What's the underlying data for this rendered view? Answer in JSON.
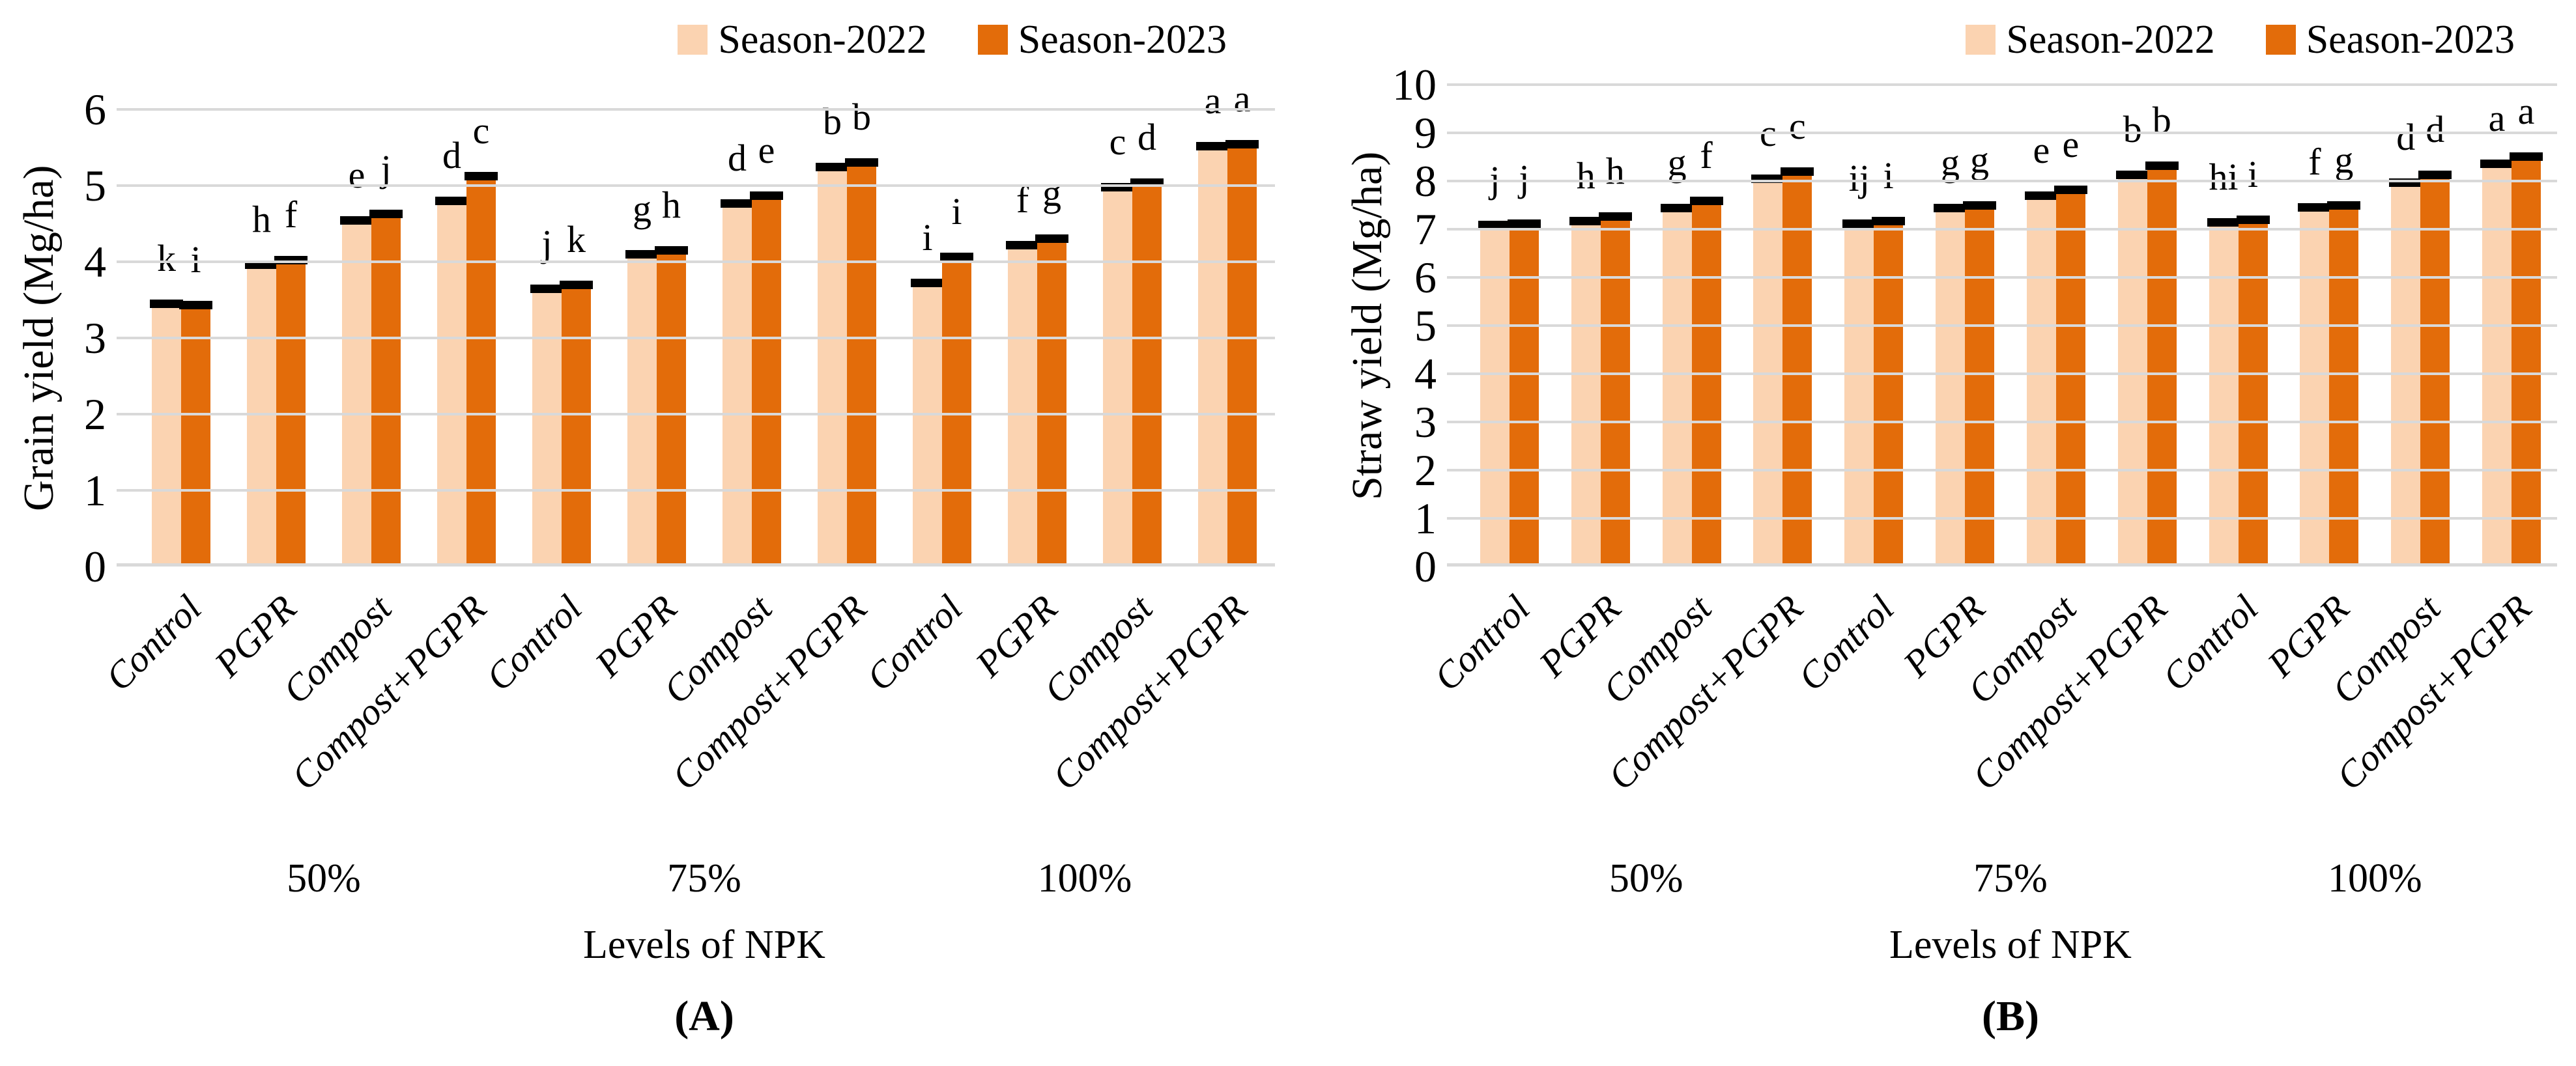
{
  "colors": {
    "season2022": "#fbd3b1",
    "season2023": "#e36c0a",
    "gridline": "#d9d9d9",
    "error_bar": "#000000",
    "text": "#000000",
    "background": "#ffffff"
  },
  "chart_data": [
    {
      "panel": "A",
      "type": "bar",
      "title": "",
      "ylabel": "Grain yield (Mg/ha)",
      "xlabel": "Levels of NPK",
      "caption": "(A)",
      "ylim": [
        0,
        6
      ],
      "ytick_step": 1,
      "grid": true,
      "error_bars": true,
      "legend_position": "top-right",
      "groups": [
        "50%",
        "75%",
        "100%"
      ],
      "x_labels": [
        "Control",
        "PGPR",
        "Compost",
        "Compost+PGPR",
        "Control",
        "PGPR",
        "Compost",
        "Compost+PGPR",
        "Control",
        "PGPR",
        "Compost",
        "Compost+PGPR"
      ],
      "series": [
        {
          "name": "Season-2022",
          "color_key": "season2022",
          "values": [
            3.45,
            3.97,
            4.55,
            4.8,
            3.65,
            4.1,
            4.77,
            5.25,
            3.73,
            4.22,
            4.98,
            5.52
          ],
          "letters": [
            "k",
            "h",
            "e",
            "d",
            "j",
            "g",
            "d",
            "b",
            "i",
            "f",
            "c",
            "a"
          ]
        },
        {
          "name": "Season-2023",
          "color_key": "season2023",
          "values": [
            3.44,
            4.03,
            4.63,
            5.13,
            3.7,
            4.15,
            4.87,
            5.31,
            4.07,
            4.31,
            5.04,
            5.55
          ],
          "letters": [
            "i",
            "f",
            "j",
            "c",
            "k",
            "h",
            "e",
            "b",
            "i",
            "g",
            "d",
            "a"
          ]
        }
      ]
    },
    {
      "panel": "B",
      "type": "bar",
      "title": "",
      "ylabel": "Straw yield (Mg/ha)",
      "xlabel": "Levels of NPK",
      "caption": "(B)",
      "ylim": [
        0,
        10
      ],
      "ytick_step": 1,
      "grid": true,
      "error_bars": true,
      "legend_position": "top-right",
      "groups": [
        "50%",
        "75%",
        "100%"
      ],
      "x_labels": [
        "Control",
        "PGPR",
        "Compost",
        "Compost+PGPR",
        "Control",
        "PGPR",
        "Compost",
        "Compost+PGPR",
        "Control",
        "PGPR",
        "Compost",
        "Compost+PGPR"
      ],
      "series": [
        {
          "name": "Season-2022",
          "color_key": "season2022",
          "values": [
            7.1,
            7.17,
            7.45,
            8.05,
            7.12,
            7.45,
            7.7,
            8.13,
            7.15,
            7.46,
            7.97,
            8.36
          ],
          "letters": [
            "j",
            "h",
            "g",
            "c",
            "ij",
            "g",
            "e",
            "b",
            "hi",
            "f",
            "d",
            "a"
          ]
        },
        {
          "name": "Season-2023",
          "color_key": "season2023",
          "values": [
            7.12,
            7.27,
            7.6,
            8.2,
            7.18,
            7.5,
            7.82,
            8.33,
            7.2,
            7.5,
            8.13,
            8.52
          ],
          "letters": [
            "j",
            "h",
            "f",
            "c",
            "i",
            "g",
            "e",
            "b",
            "i",
            "g",
            "d",
            "a"
          ]
        }
      ]
    }
  ]
}
